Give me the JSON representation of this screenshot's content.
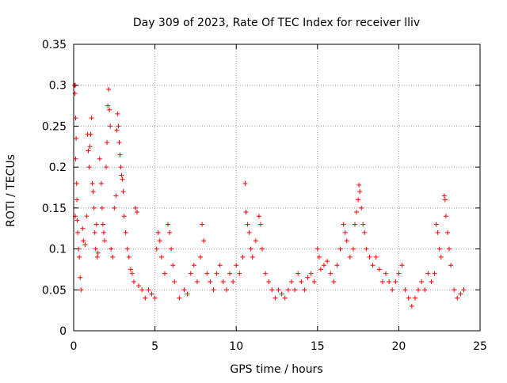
{
  "chart_data": {
    "type": "scatter",
    "title": "Day 309 of 2023, Rate Of TEC Index for receiver lliv",
    "xlabel": "GPS time / hours",
    "ylabel": "ROTI / TECUs",
    "xlim": [
      0,
      25
    ],
    "ylim": [
      0,
      0.35
    ],
    "xticks": [
      "0",
      "5",
      "10",
      "15",
      "20",
      "25"
    ],
    "yticks": [
      "0",
      "0.05",
      "0.1",
      "0.15",
      "0.2",
      "0.25",
      "0.3",
      "0.35"
    ],
    "grid": true,
    "marker": "+",
    "color": "#ff0000",
    "series": [
      {
        "points": [
          [
            0.05,
            0.3
          ],
          [
            0.08,
            0.29
          ],
          [
            0.1,
            0.3
          ],
          [
            0.12,
            0.26
          ],
          [
            0.15,
            0.235
          ],
          [
            0.12,
            0.21
          ],
          [
            0.18,
            0.18
          ],
          [
            0.2,
            0.16
          ],
          [
            0.1,
            0.14
          ],
          [
            0.22,
            0.135
          ],
          [
            0.25,
            0.12
          ],
          [
            0.3,
            0.1
          ],
          [
            0.35,
            0.09
          ],
          [
            0.4,
            0.065
          ],
          [
            0.45,
            0.05
          ],
          [
            0.55,
            0.125
          ],
          [
            0.6,
            0.11
          ],
          [
            0.7,
            0.105
          ],
          [
            0.8,
            0.14
          ],
          [
            0.85,
            0.24
          ],
          [
            0.9,
            0.22
          ],
          [
            0.95,
            0.2
          ],
          [
            1.0,
            0.225
          ],
          [
            1.05,
            0.24
          ],
          [
            1.1,
            0.26
          ],
          [
            1.15,
            0.18
          ],
          [
            1.2,
            0.17
          ],
          [
            1.25,
            0.15
          ],
          [
            1.3,
            0.12
          ],
          [
            1.35,
            0.1
          ],
          [
            1.4,
            0.13
          ],
          [
            1.45,
            0.09
          ],
          [
            1.5,
            0.095
          ],
          [
            1.6,
            0.21
          ],
          [
            1.7,
            0.18
          ],
          [
            1.75,
            0.15
          ],
          [
            1.8,
            0.13
          ],
          [
            1.85,
            0.12
          ],
          [
            1.9,
            0.11
          ],
          [
            2.0,
            0.2
          ],
          [
            2.05,
            0.23
          ],
          [
            2.1,
            0.275
          ],
          [
            2.15,
            0.295
          ],
          [
            2.2,
            0.27
          ],
          [
            2.25,
            0.25
          ],
          [
            2.3,
            0.1
          ],
          [
            2.4,
            0.09
          ],
          [
            2.5,
            0.15
          ],
          [
            2.6,
            0.165
          ],
          [
            2.65,
            0.245
          ],
          [
            2.7,
            0.265
          ],
          [
            2.75,
            0.25
          ],
          [
            2.8,
            0.23
          ],
          [
            2.85,
            0.215
          ],
          [
            2.9,
            0.2
          ],
          [
            2.95,
            0.19
          ],
          [
            3.0,
            0.185
          ],
          [
            3.05,
            0.17
          ],
          [
            3.1,
            0.14
          ],
          [
            3.2,
            0.12
          ],
          [
            3.3,
            0.1
          ],
          [
            3.4,
            0.09
          ],
          [
            3.5,
            0.075
          ],
          [
            3.6,
            0.07
          ],
          [
            3.7,
            0.06
          ],
          [
            3.8,
            0.15
          ],
          [
            3.9,
            0.145
          ],
          [
            4.0,
            0.055
          ],
          [
            4.2,
            0.05
          ],
          [
            4.4,
            0.04
          ],
          [
            4.6,
            0.05
          ],
          [
            4.8,
            0.045
          ],
          [
            5.0,
            0.04
          ],
          [
            5.1,
            0.1
          ],
          [
            5.2,
            0.12
          ],
          [
            5.3,
            0.11
          ],
          [
            5.4,
            0.09
          ],
          [
            5.6,
            0.07
          ],
          [
            5.8,
            0.13
          ],
          [
            5.9,
            0.12
          ],
          [
            6.0,
            0.1
          ],
          [
            6.1,
            0.08
          ],
          [
            6.2,
            0.06
          ],
          [
            6.5,
            0.04
          ],
          [
            6.8,
            0.05
          ],
          [
            7.0,
            0.045
          ],
          [
            7.2,
            0.07
          ],
          [
            7.4,
            0.08
          ],
          [
            7.6,
            0.06
          ],
          [
            7.8,
            0.09
          ],
          [
            7.9,
            0.13
          ],
          [
            8.0,
            0.11
          ],
          [
            8.2,
            0.07
          ],
          [
            8.4,
            0.06
          ],
          [
            8.6,
            0.05
          ],
          [
            8.8,
            0.07
          ],
          [
            9.0,
            0.08
          ],
          [
            9.2,
            0.06
          ],
          [
            9.4,
            0.05
          ],
          [
            9.6,
            0.07
          ],
          [
            9.8,
            0.06
          ],
          [
            10.0,
            0.08
          ],
          [
            10.2,
            0.07
          ],
          [
            10.4,
            0.09
          ],
          [
            10.55,
            0.18
          ],
          [
            10.6,
            0.145
          ],
          [
            10.7,
            0.13
          ],
          [
            10.8,
            0.12
          ],
          [
            10.9,
            0.1
          ],
          [
            11.0,
            0.09
          ],
          [
            11.2,
            0.11
          ],
          [
            11.4,
            0.14
          ],
          [
            11.5,
            0.13
          ],
          [
            11.6,
            0.1
          ],
          [
            11.8,
            0.07
          ],
          [
            12.0,
            0.06
          ],
          [
            12.2,
            0.05
          ],
          [
            12.4,
            0.04
          ],
          [
            12.6,
            0.05
          ],
          [
            12.8,
            0.045
          ],
          [
            13.0,
            0.04
          ],
          [
            13.2,
            0.05
          ],
          [
            13.4,
            0.06
          ],
          [
            13.6,
            0.05
          ],
          [
            13.8,
            0.07
          ],
          [
            14.0,
            0.06
          ],
          [
            14.2,
            0.05
          ],
          [
            14.4,
            0.065
          ],
          [
            14.6,
            0.07
          ],
          [
            14.8,
            0.06
          ],
          [
            15.0,
            0.1
          ],
          [
            15.1,
            0.09
          ],
          [
            15.2,
            0.075
          ],
          [
            15.4,
            0.08
          ],
          [
            15.6,
            0.085
          ],
          [
            15.8,
            0.07
          ],
          [
            16.0,
            0.06
          ],
          [
            16.2,
            0.08
          ],
          [
            16.4,
            0.1
          ],
          [
            16.6,
            0.13
          ],
          [
            16.7,
            0.12
          ],
          [
            16.8,
            0.11
          ],
          [
            17.0,
            0.09
          ],
          [
            17.2,
            0.1
          ],
          [
            17.3,
            0.13
          ],
          [
            17.4,
            0.145
          ],
          [
            17.5,
            0.16
          ],
          [
            17.55,
            0.178
          ],
          [
            17.6,
            0.17
          ],
          [
            17.7,
            0.15
          ],
          [
            17.8,
            0.13
          ],
          [
            17.9,
            0.12
          ],
          [
            18.0,
            0.1
          ],
          [
            18.2,
            0.09
          ],
          [
            18.4,
            0.08
          ],
          [
            18.6,
            0.09
          ],
          [
            18.8,
            0.075
          ],
          [
            19.0,
            0.06
          ],
          [
            19.2,
            0.07
          ],
          [
            19.4,
            0.06
          ],
          [
            19.6,
            0.05
          ],
          [
            19.8,
            0.06
          ],
          [
            20.0,
            0.07
          ],
          [
            20.2,
            0.08
          ],
          [
            20.4,
            0.05
          ],
          [
            20.6,
            0.04
          ],
          [
            20.8,
            0.03
          ],
          [
            21.0,
            0.04
          ],
          [
            21.2,
            0.05
          ],
          [
            21.4,
            0.06
          ],
          [
            21.6,
            0.05
          ],
          [
            21.8,
            0.07
          ],
          [
            22.0,
            0.06
          ],
          [
            22.2,
            0.07
          ],
          [
            22.3,
            0.13
          ],
          [
            22.4,
            0.12
          ],
          [
            22.5,
            0.1
          ],
          [
            22.6,
            0.09
          ],
          [
            22.8,
            0.165
          ],
          [
            22.85,
            0.16
          ],
          [
            22.9,
            0.14
          ],
          [
            23.0,
            0.12
          ],
          [
            23.1,
            0.1
          ],
          [
            23.2,
            0.08
          ],
          [
            23.4,
            0.05
          ],
          [
            23.6,
            0.04
          ],
          [
            23.8,
            0.045
          ],
          [
            24.0,
            0.05
          ]
        ]
      }
    ]
  }
}
